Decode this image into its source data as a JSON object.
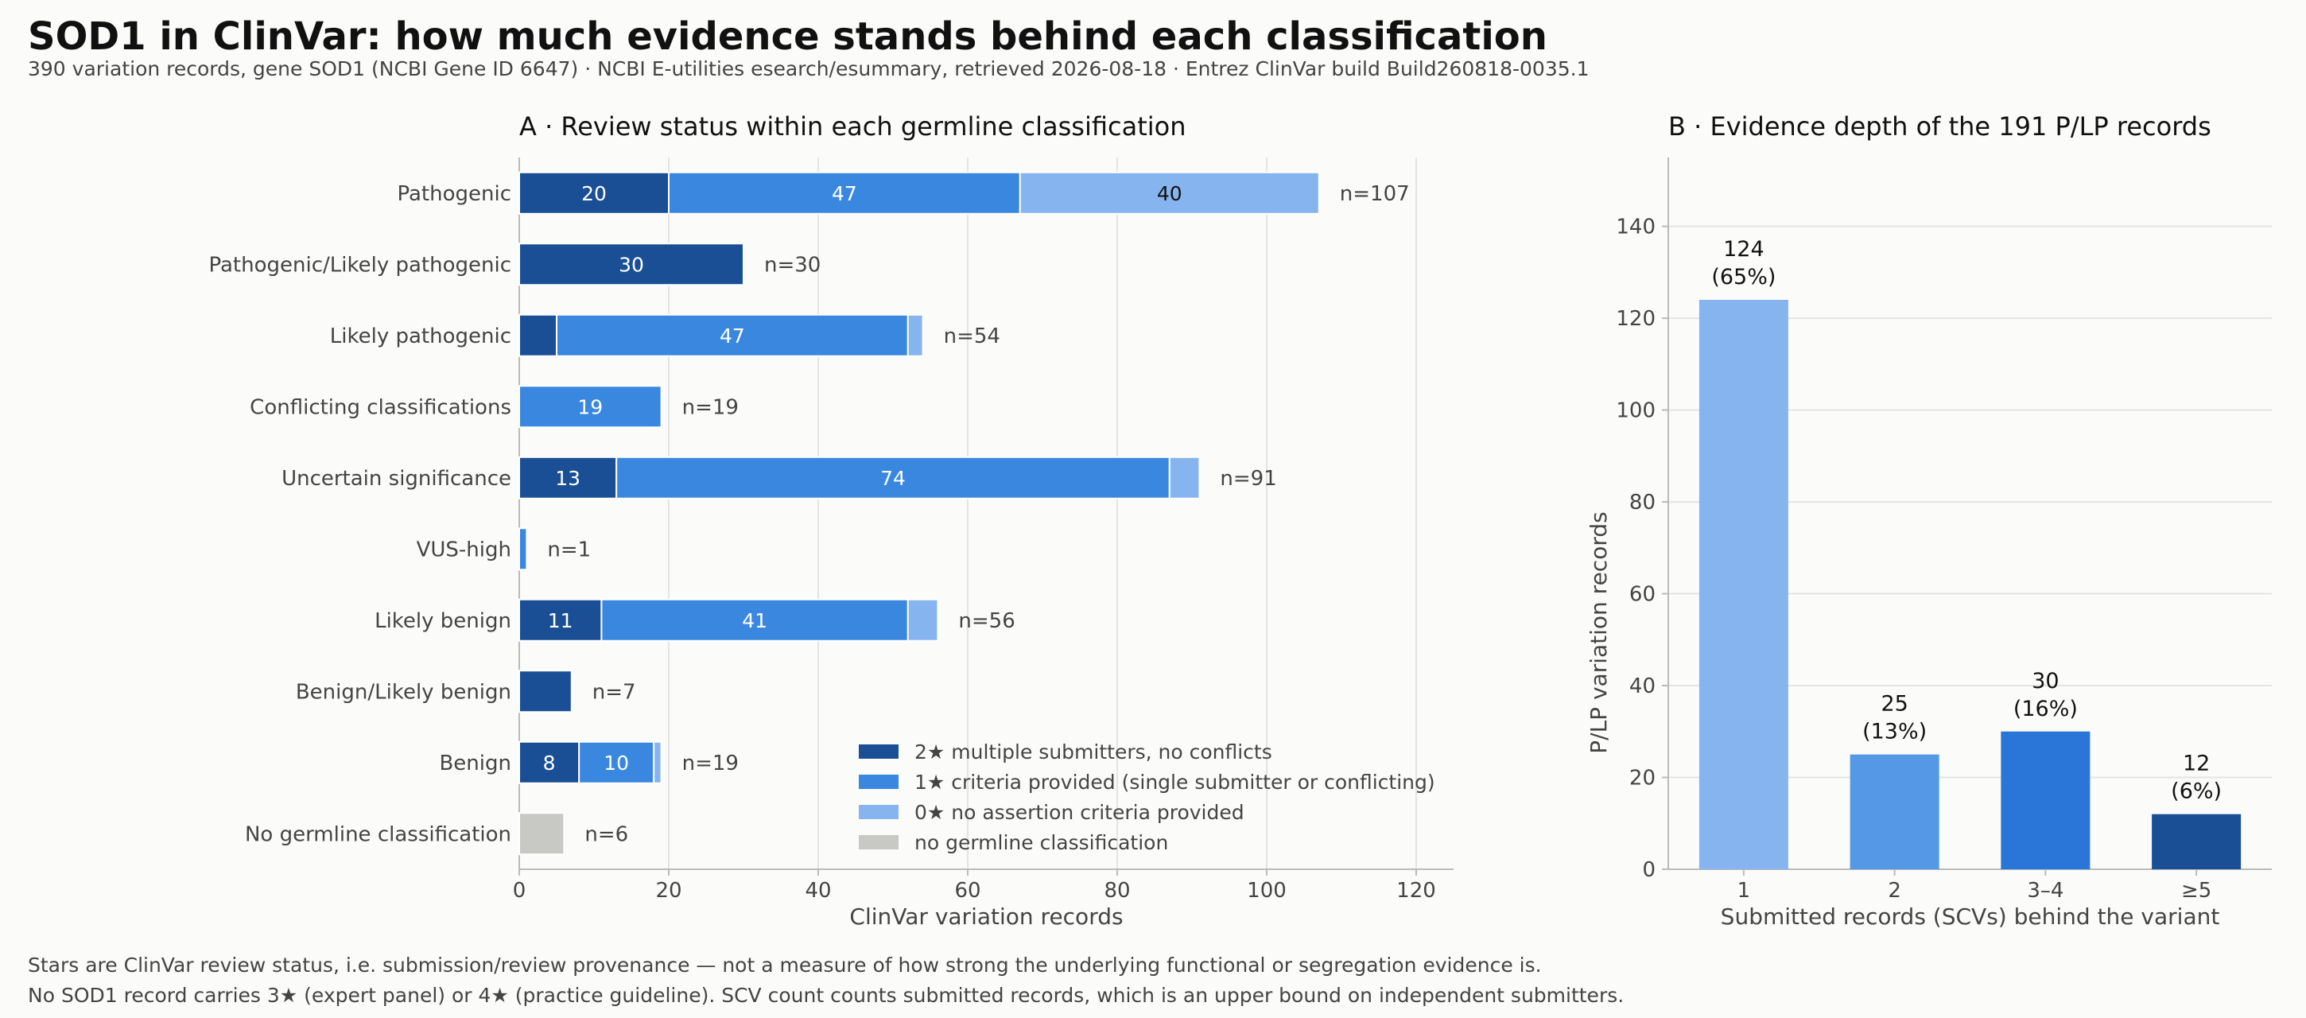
{
  "title": "SOD1 in ClinVar: how much evidence stands behind each classification",
  "subtitle": "390 variation records, gene SOD1 (NCBI Gene ID 6647) · NCBI E-utilities esearch/esummary, retrieved 2026-08-18 · Entrez ClinVar build Build260818-0035.1",
  "footnotes": [
    "Stars are ClinVar review status, i.e. submission/review provenance — not a measure of how strong the underlying functional or segregation evidence is.",
    "No SOD1 record carries 3★ (expert panel) or 4★ (practice guideline). SCV count counts submitted records, which is an upper bound on independent submitters."
  ],
  "colors": {
    "two_star": "#1a4f96",
    "one_star": "#3a87e0",
    "zero_star": "#86b4ee",
    "none": "#c8c8c4",
    "b_bar1": "#86b4ee",
    "b_bar2": "#5598e6",
    "b_bar3": "#2a76d8",
    "b_bar4": "#1a4f96",
    "grid": "#e4e4e4",
    "axis": "#bbbbbb",
    "text": "#444444"
  },
  "chart_data": [
    {
      "type": "bar",
      "orientation": "horizontal",
      "stacked": true,
      "title": "A · Review status within each germline classification",
      "xlabel": "ClinVar variation records",
      "xlim": [
        0,
        125
      ],
      "xticks": [
        0,
        20,
        40,
        60,
        80,
        100,
        120
      ],
      "grid": "vertical",
      "legend_position": "lower-right",
      "categories": [
        "Pathogenic",
        "Pathogenic/Likely pathogenic",
        "Likely pathogenic",
        "Conflicting classifications",
        "Uncertain significance",
        "VUS-high",
        "Likely benign",
        "Benign/Likely benign",
        "Benign",
        "No germline classification"
      ],
      "totals_labels": [
        "n=107",
        "n=30",
        "n=54",
        "n=19",
        "n=91",
        "n=1",
        "n=56",
        "n=7",
        "n=19",
        "n=6"
      ],
      "series": [
        {
          "key": "two_star",
          "name": "2★ multiple submitters, no conflicts",
          "values": [
            20,
            30,
            5,
            0,
            13,
            0,
            11,
            7,
            8,
            0
          ]
        },
        {
          "key": "one_star",
          "name": "1★ criteria provided (single submitter or conflicting)",
          "values": [
            47,
            0,
            47,
            19,
            74,
            1,
            41,
            0,
            10,
            0
          ]
        },
        {
          "key": "zero_star",
          "name": "0★ no assertion criteria provided",
          "values": [
            40,
            0,
            2,
            0,
            4,
            0,
            4,
            0,
            1,
            0
          ]
        },
        {
          "key": "none",
          "name": "no germline classification",
          "values": [
            0,
            0,
            0,
            0,
            0,
            0,
            0,
            0,
            0,
            6
          ]
        }
      ],
      "segment_labels": [
        [
          "20",
          "47",
          "40",
          null
        ],
        [
          "30",
          null,
          null,
          null
        ],
        [
          null,
          "47",
          null,
          null
        ],
        [
          null,
          "19",
          null,
          null
        ],
        [
          "13",
          "74",
          null,
          null
        ],
        [
          null,
          null,
          null,
          null
        ],
        [
          "11",
          "41",
          null,
          null
        ],
        [
          null,
          null,
          null,
          null
        ],
        [
          "8",
          "10",
          null,
          null
        ],
        [
          null,
          null,
          null,
          null
        ]
      ]
    },
    {
      "type": "bar",
      "title": "B · Evidence depth of the 191 P/LP records",
      "xlabel": "Submitted records (SCVs) behind the variant",
      "ylabel": "P/LP variation records",
      "ylim": [
        0,
        155
      ],
      "yticks": [
        0,
        20,
        40,
        60,
        80,
        100,
        120,
        140
      ],
      "grid": "horizontal",
      "categories": [
        "1",
        "2",
        "3–4",
        "≥5"
      ],
      "values": [
        124,
        25,
        30,
        12
      ],
      "value_labels": [
        "124",
        "25",
        "30",
        "12"
      ],
      "pct_labels": [
        "(65%)",
        "(13%)",
        "(16%)",
        "(6%)"
      ]
    }
  ]
}
